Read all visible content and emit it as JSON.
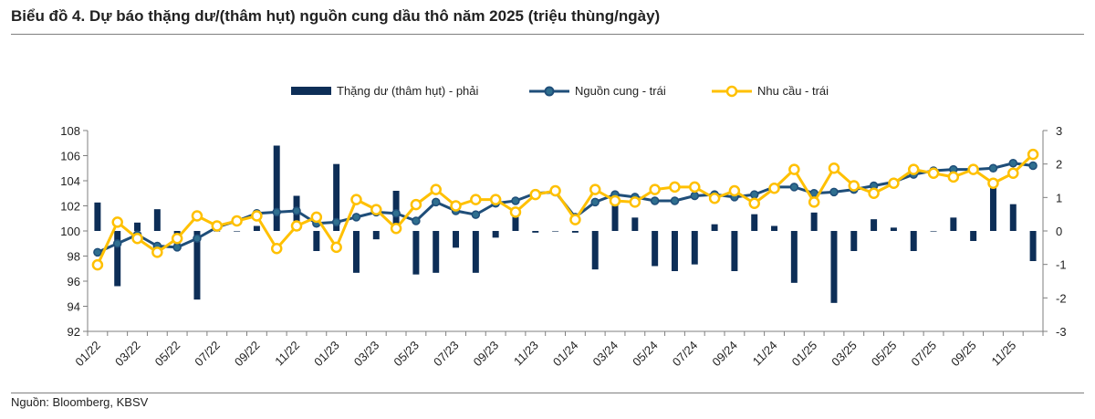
{
  "header": {
    "title": "Biểu đồ 4. Dự báo thặng dư/(thâm hụt) nguồn cung dầu thô năm 2025 (triệu thùng/ngày)"
  },
  "footer": {
    "source": "Nguồn: Bloomberg, KBSV"
  },
  "colors": {
    "bar": "#0d2e57",
    "supply": "#1f4e79",
    "supply_marker": "#2f6f8f",
    "demand": "#ffc000",
    "axis": "#7f7f7f"
  },
  "chart_data": {
    "type": "bar+line",
    "title": "Biểu đồ 4. Dự báo thặng dư/(thâm hụt) nguồn cung dầu thô năm 2025 (triệu thùng/ngày)",
    "legend": {
      "position": "top-center",
      "items": [
        "Thặng dư (thâm hụt) - phải",
        "Nguồn cung - trái",
        "Nhu cầu - trái"
      ]
    },
    "y_left": {
      "min": 92,
      "max": 108,
      "step": 2,
      "ticks": [
        "108",
        "106",
        "104",
        "102",
        "100",
        "98",
        "96",
        "94",
        "92"
      ]
    },
    "y_right": {
      "min": -3,
      "max": 3,
      "step": 1,
      "ticks": [
        "3",
        "2",
        "1",
        "0",
        "-1",
        "-2",
        "-3"
      ]
    },
    "x_labels": [
      "01/22",
      "03/22",
      "05/22",
      "07/22",
      "09/22",
      "11/22",
      "01/23",
      "03/23",
      "05/23",
      "07/23",
      "09/23",
      "11/23",
      "01/24",
      "03/24",
      "05/24",
      "07/24",
      "09/24",
      "11/24",
      "01/25",
      "03/25",
      "05/25",
      "07/25",
      "09/25",
      "11/25"
    ],
    "n_points": 48,
    "series": [
      {
        "name": "Thặng dư (thâm hụt) - phải",
        "kind": "bar",
        "axis": "right",
        "values": [
          0.85,
          -1.65,
          0.25,
          0.65,
          -0.4,
          -2.05,
          0.0,
          0.0,
          0.15,
          2.55,
          1.05,
          -0.6,
          2.0,
          -1.25,
          -0.25,
          1.2,
          -1.3,
          -1.25,
          -0.5,
          -1.25,
          -0.2,
          0.5,
          -0.05,
          0.0,
          -0.05,
          -1.15,
          0.85,
          0.4,
          -1.05,
          -1.2,
          -1.0,
          0.2,
          -1.2,
          0.5,
          0.15,
          -1.55,
          0.55,
          -2.15,
          -0.6,
          0.35,
          0.1,
          -0.6,
          0.0,
          0.4,
          -0.3,
          1.4,
          0.8,
          -0.9
        ]
      },
      {
        "name": "Nguồn cung - trái",
        "kind": "line",
        "axis": "left",
        "values": [
          98.3,
          99.0,
          99.7,
          98.8,
          98.7,
          99.4,
          100.3,
          100.8,
          101.4,
          101.5,
          101.6,
          100.6,
          100.7,
          101.1,
          101.5,
          101.4,
          100.8,
          102.3,
          101.6,
          101.3,
          102.2,
          102.4,
          103.0,
          103.1,
          101.1,
          102.3,
          102.9,
          102.7,
          102.4,
          102.4,
          102.8,
          102.9,
          102.7,
          102.9,
          103.5,
          103.5,
          103.0,
          103.1,
          103.3,
          103.6,
          103.9,
          104.5,
          104.8,
          104.9,
          104.9,
          105.0,
          105.4,
          105.2
        ]
      },
      {
        "name": "Nhu cầu - trái",
        "kind": "line",
        "axis": "left",
        "values": [
          97.3,
          100.7,
          99.4,
          98.3,
          99.4,
          101.2,
          100.4,
          100.8,
          101.2,
          98.6,
          100.4,
          101.1,
          98.7,
          102.5,
          101.7,
          100.2,
          102.1,
          103.3,
          102.0,
          102.5,
          102.5,
          101.5,
          102.9,
          103.2,
          100.9,
          103.3,
          102.4,
          102.3,
          103.3,
          103.5,
          103.5,
          102.6,
          103.2,
          102.2,
          103.4,
          104.9,
          102.3,
          105.0,
          103.6,
          103.0,
          103.8,
          104.9,
          104.6,
          104.3,
          104.9,
          103.8,
          104.6,
          106.1
        ]
      }
    ]
  }
}
